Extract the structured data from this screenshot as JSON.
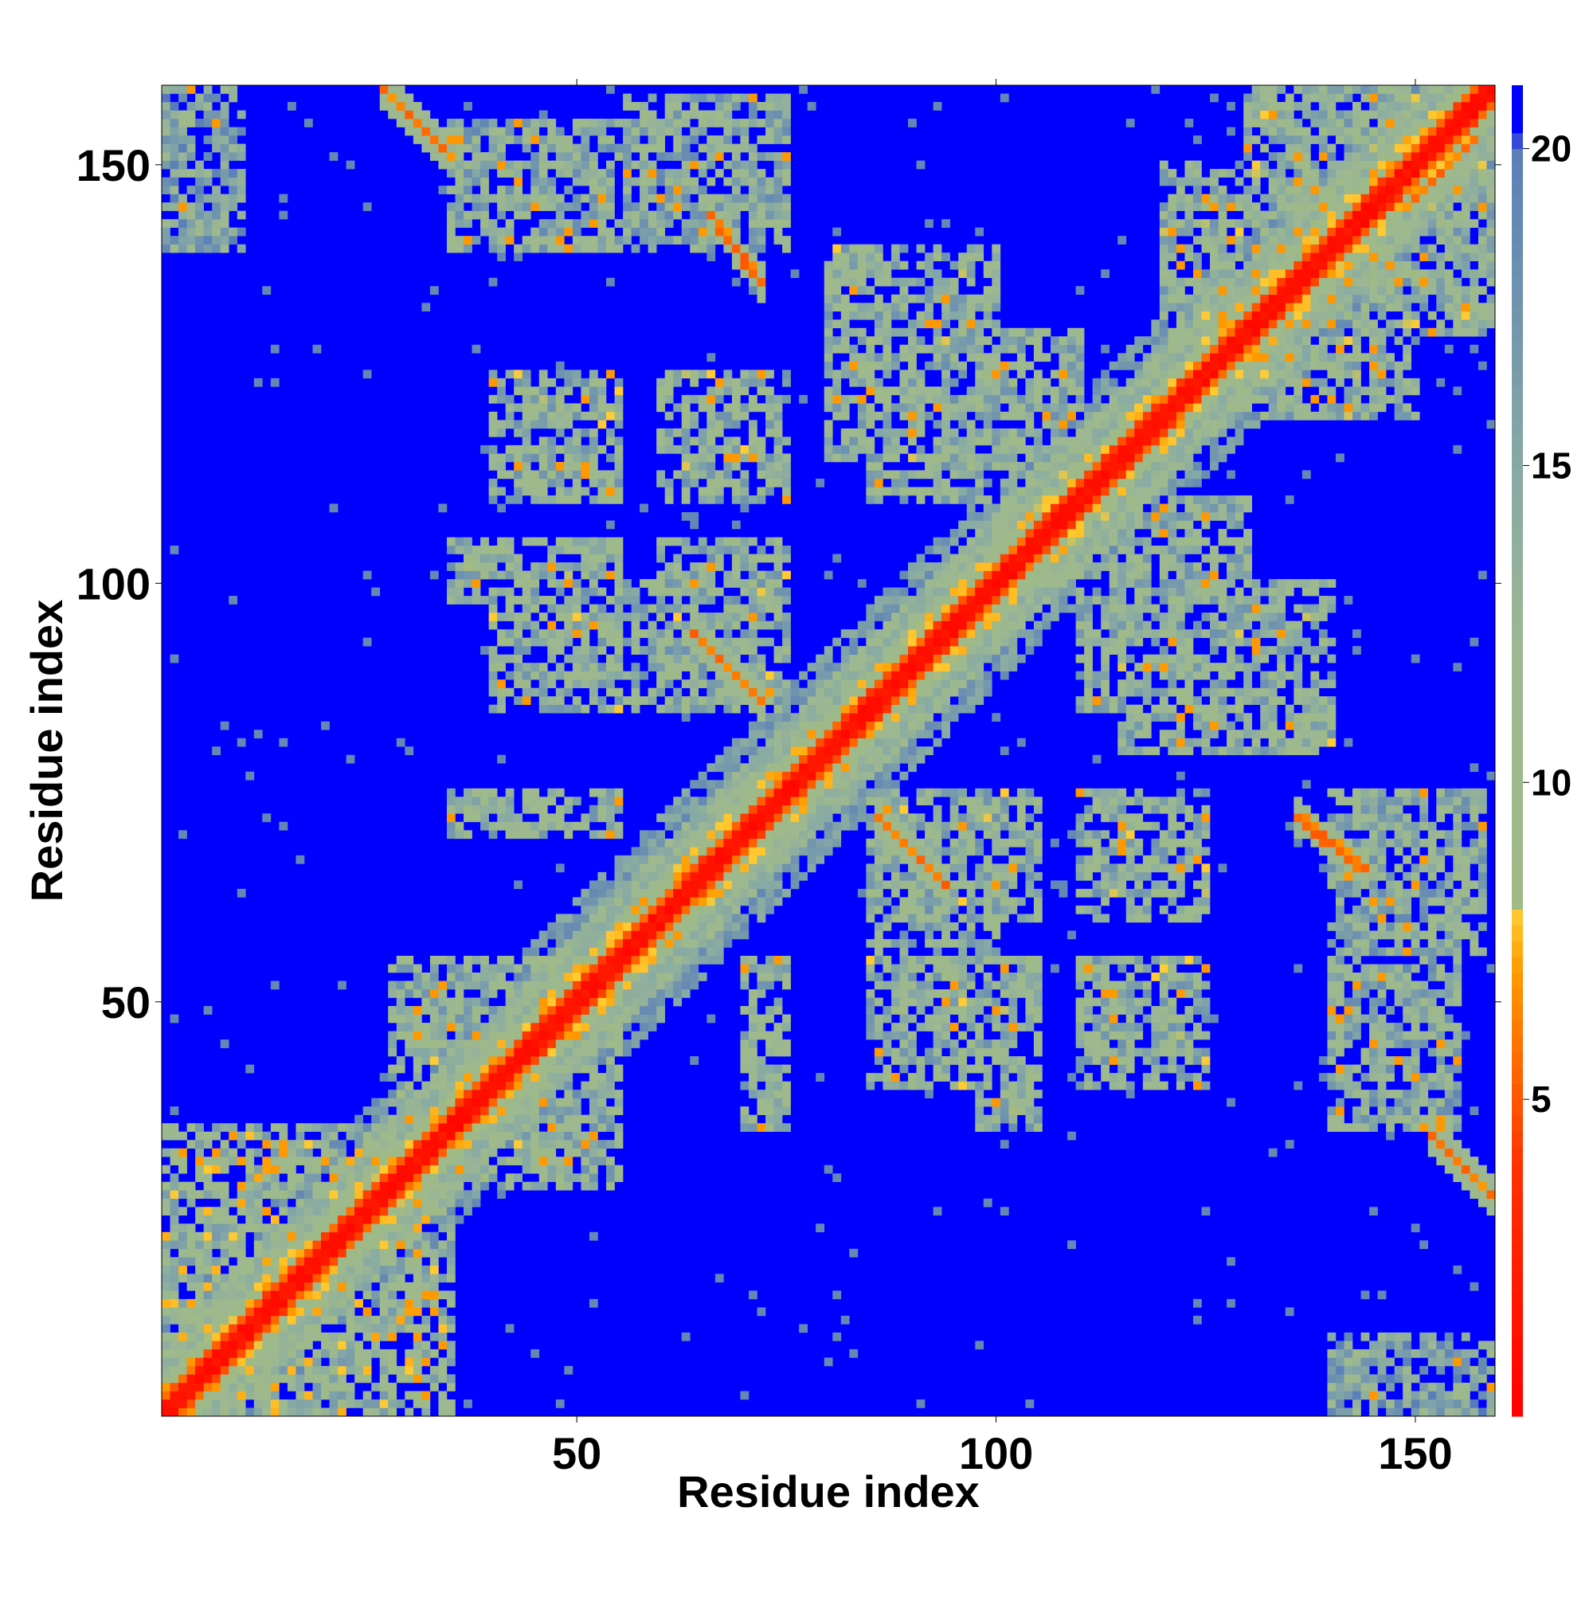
{
  "chart_data": {
    "type": "heatmap",
    "title": "",
    "xlabel": "Residue index",
    "ylabel": "Residue index",
    "x_range": [
      1,
      159
    ],
    "y_range": [
      1,
      159
    ],
    "x_ticks": [
      50,
      100,
      150
    ],
    "y_ticks": [
      50,
      100,
      150
    ],
    "colorbar": {
      "range": [
        0,
        21
      ],
      "ticks": [
        5,
        10,
        15,
        20
      ],
      "scale": [
        {
          "value": 0,
          "color": "#ff0000"
        },
        {
          "value": 4,
          "color": "#ff3300"
        },
        {
          "value": 7,
          "color": "#ff9900"
        },
        {
          "value": 8,
          "color": "#ffcc33"
        },
        {
          "value": 8.1,
          "color": "#9fba86"
        },
        {
          "value": 12,
          "color": "#9db891"
        },
        {
          "value": 15,
          "color": "#87a9a5"
        },
        {
          "value": 20,
          "color": "#5a7fb8"
        },
        {
          "value": 20.3,
          "color": "#0000ff"
        },
        {
          "value": 21,
          "color": "#0000ff"
        }
      ]
    },
    "description_of_values": "Pairwise residue distances; symmetric matrix with near-zero distances along the diagonal and blue (>20) far-apart pairs.",
    "contact_regions": [
      {
        "i": [
          1,
          35
        ],
        "j": [
          1,
          35
        ],
        "level": 12
      },
      {
        "i": [
          28,
          55
        ],
        "j": [
          28,
          55
        ],
        "level": 13
      },
      {
        "i": [
          35,
          55
        ],
        "j": [
          98,
          105
        ],
        "level": 13
      },
      {
        "i": [
          35,
          55
        ],
        "j": [
          75,
          70
        ],
        "level": 13
      },
      {
        "i": [
          35,
          55
        ],
        "j": [
          140,
          155
        ],
        "level": 14
      },
      {
        "i": [
          55,
          75
        ],
        "j": [
          85,
          100
        ],
        "level": 13
      },
      {
        "i": [
          55,
          75
        ],
        "j": [
          140,
          158
        ],
        "level": 14
      },
      {
        "i": [
          85,
          105
        ],
        "j": [
          40,
          55
        ],
        "level": 13
      },
      {
        "i": [
          85,
          105
        ],
        "j": [
          60,
          75
        ],
        "level": 13
      },
      {
        "i": [
          85,
          110
        ],
        "j": [
          110,
          130
        ],
        "level": 13
      },
      {
        "i": [
          110,
          125
        ],
        "j": [
          40,
          55
        ],
        "level": 13
      },
      {
        "i": [
          110,
          125
        ],
        "j": [
          60,
          75
        ],
        "level": 13
      },
      {
        "i": [
          115,
          140
        ],
        "j": [
          80,
          100
        ],
        "level": 13
      },
      {
        "i": [
          135,
          159
        ],
        "j": [
          130,
          159
        ],
        "level": 13
      },
      {
        "i": [
          125,
          150
        ],
        "j": [
          120,
          135
        ],
        "level": 13
      },
      {
        "i": [
          140,
          159
        ],
        "j": [
          1,
          10
        ],
        "level": 15
      }
    ],
    "antiparallel_strands": [
      {
        "i": [
          64,
          72
        ],
        "j": [
          94,
          86
        ],
        "level": 6
      },
      {
        "i": [
          86,
          94
        ],
        "j": [
          72,
          64
        ],
        "level": 6
      },
      {
        "i": [
          66,
          72
        ],
        "j": [
          144,
          136
        ],
        "level": 6
      },
      {
        "i": [
          136,
          144
        ],
        "j": [
          72,
          66
        ],
        "level": 6
      },
      {
        "i": [
          27,
          34
        ],
        "j": [
          159,
          152
        ],
        "level": 6
      },
      {
        "i": [
          152,
          159
        ],
        "j": [
          34,
          27
        ],
        "level": 6
      },
      {
        "i": [
          150,
          157
        ],
        "j": [
          146,
          153
        ],
        "level": 6
      }
    ]
  }
}
